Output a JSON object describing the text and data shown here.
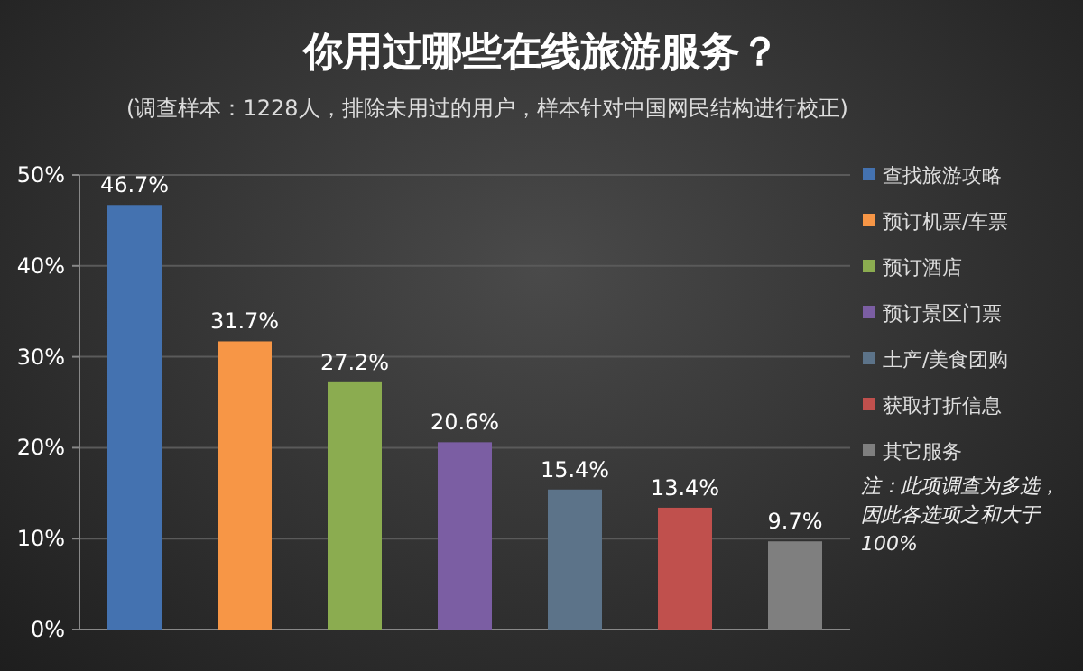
{
  "chart_data": {
    "type": "bar",
    "title": "你用过哪些在线旅游服务？",
    "subtitle": "(调查样本：1228人，排除未用过的用户，样本针对中国网民结构进行校正)",
    "categories": [
      null
    ],
    "series": [
      {
        "name": "查找旅游攻略",
        "color": "#4472b0",
        "values": [
          46.7
        ],
        "value_labels": [
          "46.7%"
        ]
      },
      {
        "name": "预订机票/车票",
        "color": "#f79646",
        "values": [
          31.7
        ],
        "value_labels": [
          "31.7%"
        ]
      },
      {
        "name": "预订酒店",
        "color": "#8bac50",
        "values": [
          27.2
        ],
        "value_labels": [
          "27.2%"
        ]
      },
      {
        "name": "预订景区门票",
        "color": "#7b5ea3",
        "values": [
          20.6
        ],
        "value_labels": [
          "20.6%"
        ]
      },
      {
        "name": "土产/美食团购",
        "color": "#5c7389",
        "values": [
          15.4
        ],
        "value_labels": [
          "15.4%"
        ]
      },
      {
        "name": "获取打折信息",
        "color": "#c0504d",
        "values": [
          13.4
        ],
        "value_labels": [
          "13.4%"
        ]
      },
      {
        "name": "其它服务",
        "color": "#7f7f7f",
        "values": [
          9.7
        ],
        "value_labels": [
          "9.7%"
        ]
      }
    ],
    "ylim": [
      0,
      50
    ],
    "yticks": [
      {
        "value": 0,
        "label": "0%"
      },
      {
        "value": 10,
        "label": "10%"
      },
      {
        "value": 20,
        "label": "20%"
      },
      {
        "value": 30,
        "label": "30%"
      },
      {
        "value": 40,
        "label": "40%"
      },
      {
        "value": 50,
        "label": "50%"
      }
    ],
    "grid": "y",
    "legend": "right",
    "annotations": [
      "注：此项调查为多选，因此各选项之和大于100%"
    ]
  }
}
